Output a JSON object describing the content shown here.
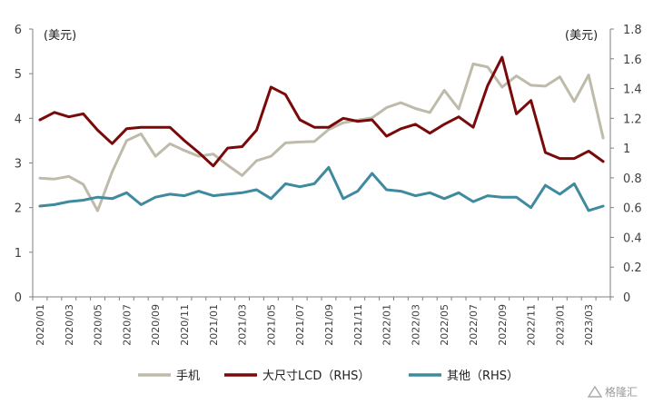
{
  "chart_data": {
    "type": "line",
    "left_unit": "(美元)",
    "right_unit": "(美元)",
    "left_axis": {
      "min": 0,
      "max": 6,
      "ticks": [
        "0",
        "1",
        "2",
        "3",
        "4",
        "5",
        "6"
      ]
    },
    "right_axis": {
      "min": 0,
      "max": 1.8,
      "ticks": [
        "0",
        "0.2",
        "0.4",
        "0.6",
        "0.8",
        "1",
        "1.2",
        "1.4",
        "1.6",
        "1.8"
      ]
    },
    "x_start": "2020-01",
    "x_labels": [
      "2020/01",
      "2020/03",
      "2020/05",
      "2020/07",
      "2020/09",
      "2020/11",
      "2021/01",
      "2021/03",
      "2021/05",
      "2021/07",
      "2021/09",
      "2021/11",
      "2022/01",
      "2022/03",
      "2022/05",
      "2022/07",
      "2022/09",
      "2022/11",
      "2023/01",
      "2023/03"
    ],
    "series": [
      {
        "name": "手机",
        "axis": "left",
        "color": "#bebbaa",
        "values": [
          2.66,
          2.64,
          2.7,
          2.52,
          1.93,
          2.8,
          3.5,
          3.65,
          3.15,
          3.43,
          3.28,
          3.15,
          3.2,
          2.95,
          2.72,
          3.05,
          3.15,
          3.45,
          3.47,
          3.48,
          3.75,
          3.9,
          3.96,
          4.01,
          4.24,
          4.35,
          4.22,
          4.13,
          4.63,
          4.21,
          5.22,
          5.15,
          4.7,
          4.95,
          4.74,
          4.72,
          4.93,
          4.38,
          4.97,
          3.56
        ]
      },
      {
        "name": "大尺寸LCD（RHS）",
        "axis": "right",
        "color": "#7a0a0a",
        "values": [
          1.19,
          1.24,
          1.21,
          1.23,
          1.12,
          1.03,
          1.13,
          1.14,
          1.14,
          1.14,
          1.05,
          0.97,
          0.88,
          1.0,
          1.01,
          1.12,
          1.41,
          1.36,
          1.19,
          1.14,
          1.14,
          1.2,
          1.18,
          1.19,
          1.08,
          1.13,
          1.16,
          1.1,
          1.16,
          1.21,
          1.14,
          1.42,
          1.61,
          1.23,
          1.32,
          0.97,
          0.93,
          0.93,
          0.98,
          0.91
        ]
      },
      {
        "name": "其他（RHS）",
        "axis": "right",
        "color": "#3f8a9e",
        "values": [
          0.61,
          0.62,
          0.64,
          0.65,
          0.67,
          0.66,
          0.7,
          0.62,
          0.67,
          0.69,
          0.68,
          0.71,
          0.68,
          0.69,
          0.7,
          0.72,
          0.66,
          0.76,
          0.74,
          0.76,
          0.87,
          0.66,
          0.71,
          0.83,
          0.72,
          0.71,
          0.68,
          0.7,
          0.66,
          0.7,
          0.64,
          0.68,
          0.67,
          0.67,
          0.6,
          0.75,
          0.69,
          0.76,
          0.58,
          0.61
        ]
      }
    ],
    "grid": false,
    "legend_position": "bottom"
  },
  "watermark": {
    "text": "格隆汇",
    "icon": "triangle-logo-icon"
  }
}
